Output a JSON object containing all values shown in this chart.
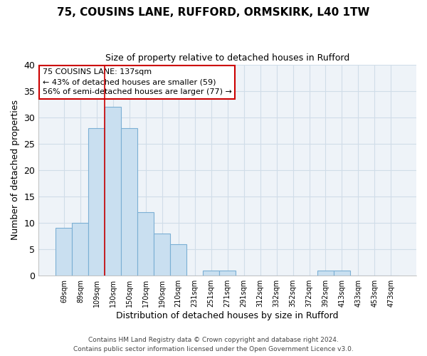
{
  "title_line1": "75, COUSINS LANE, RUFFORD, ORMSKIRK, L40 1TW",
  "title_line2": "Size of property relative to detached houses in Rufford",
  "xlabel": "Distribution of detached houses by size in Rufford",
  "ylabel": "Number of detached properties",
  "footer_line1": "Contains HM Land Registry data © Crown copyright and database right 2024.",
  "footer_line2": "Contains public sector information licensed under the Open Government Licence v3.0.",
  "bin_labels": [
    "69sqm",
    "89sqm",
    "109sqm",
    "130sqm",
    "150sqm",
    "170sqm",
    "190sqm",
    "210sqm",
    "231sqm",
    "251sqm",
    "271sqm",
    "291sqm",
    "312sqm",
    "332sqm",
    "352sqm",
    "372sqm",
    "392sqm",
    "413sqm",
    "433sqm",
    "453sqm",
    "473sqm"
  ],
  "bar_values": [
    9,
    10,
    28,
    32,
    28,
    12,
    8,
    6,
    0,
    1,
    1,
    0,
    0,
    0,
    0,
    0,
    1,
    1,
    0,
    0,
    0
  ],
  "bar_color": "#c9dff0",
  "bar_edge_color": "#7bafd4",
  "vline_x_index": 3,
  "vline_color": "#cc0000",
  "annotation_line1": "75 COUSINS LANE: 137sqm",
  "annotation_line2": "← 43% of detached houses are smaller (59)",
  "annotation_line3": "56% of semi-detached houses are larger (77) →",
  "annotation_box_color": "#ffffff",
  "annotation_box_edge": "#cc0000",
  "ylim": [
    0,
    40
  ],
  "yticks": [
    0,
    5,
    10,
    15,
    20,
    25,
    30,
    35,
    40
  ],
  "grid_color": "#d0dde8",
  "background_color": "#ffffff",
  "plot_bg_color": "#eef3f8"
}
